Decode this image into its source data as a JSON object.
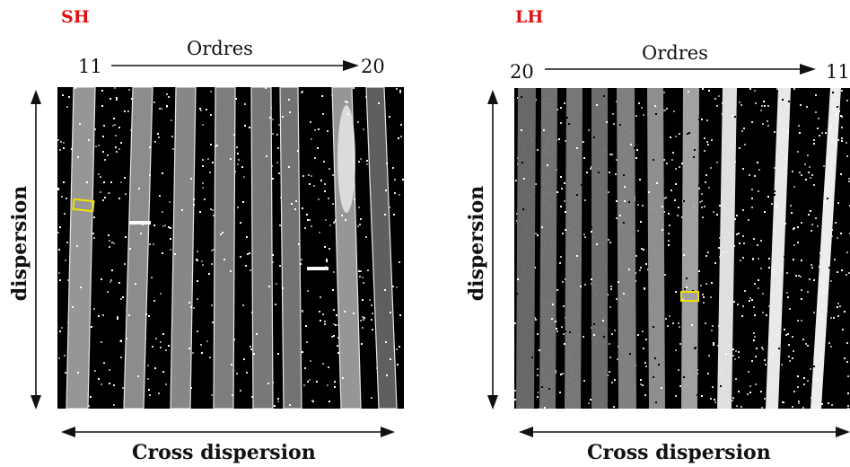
{
  "panels": [
    {
      "label": "SH",
      "orders_title": "Ordres",
      "order_start": "11",
      "order_end": "20",
      "y_axis_label": "dispersion",
      "x_axis_label": "Cross dispersion",
      "label_color": "#e01010",
      "highlight_color": "#f0e000"
    },
    {
      "label": "LH",
      "orders_title": "Ordres",
      "order_start": "20",
      "order_end": "11",
      "y_axis_label": "dispersion",
      "x_axis_label": "Cross dispersion",
      "label_color": "#e01010",
      "highlight_color": "#f0e000"
    }
  ]
}
